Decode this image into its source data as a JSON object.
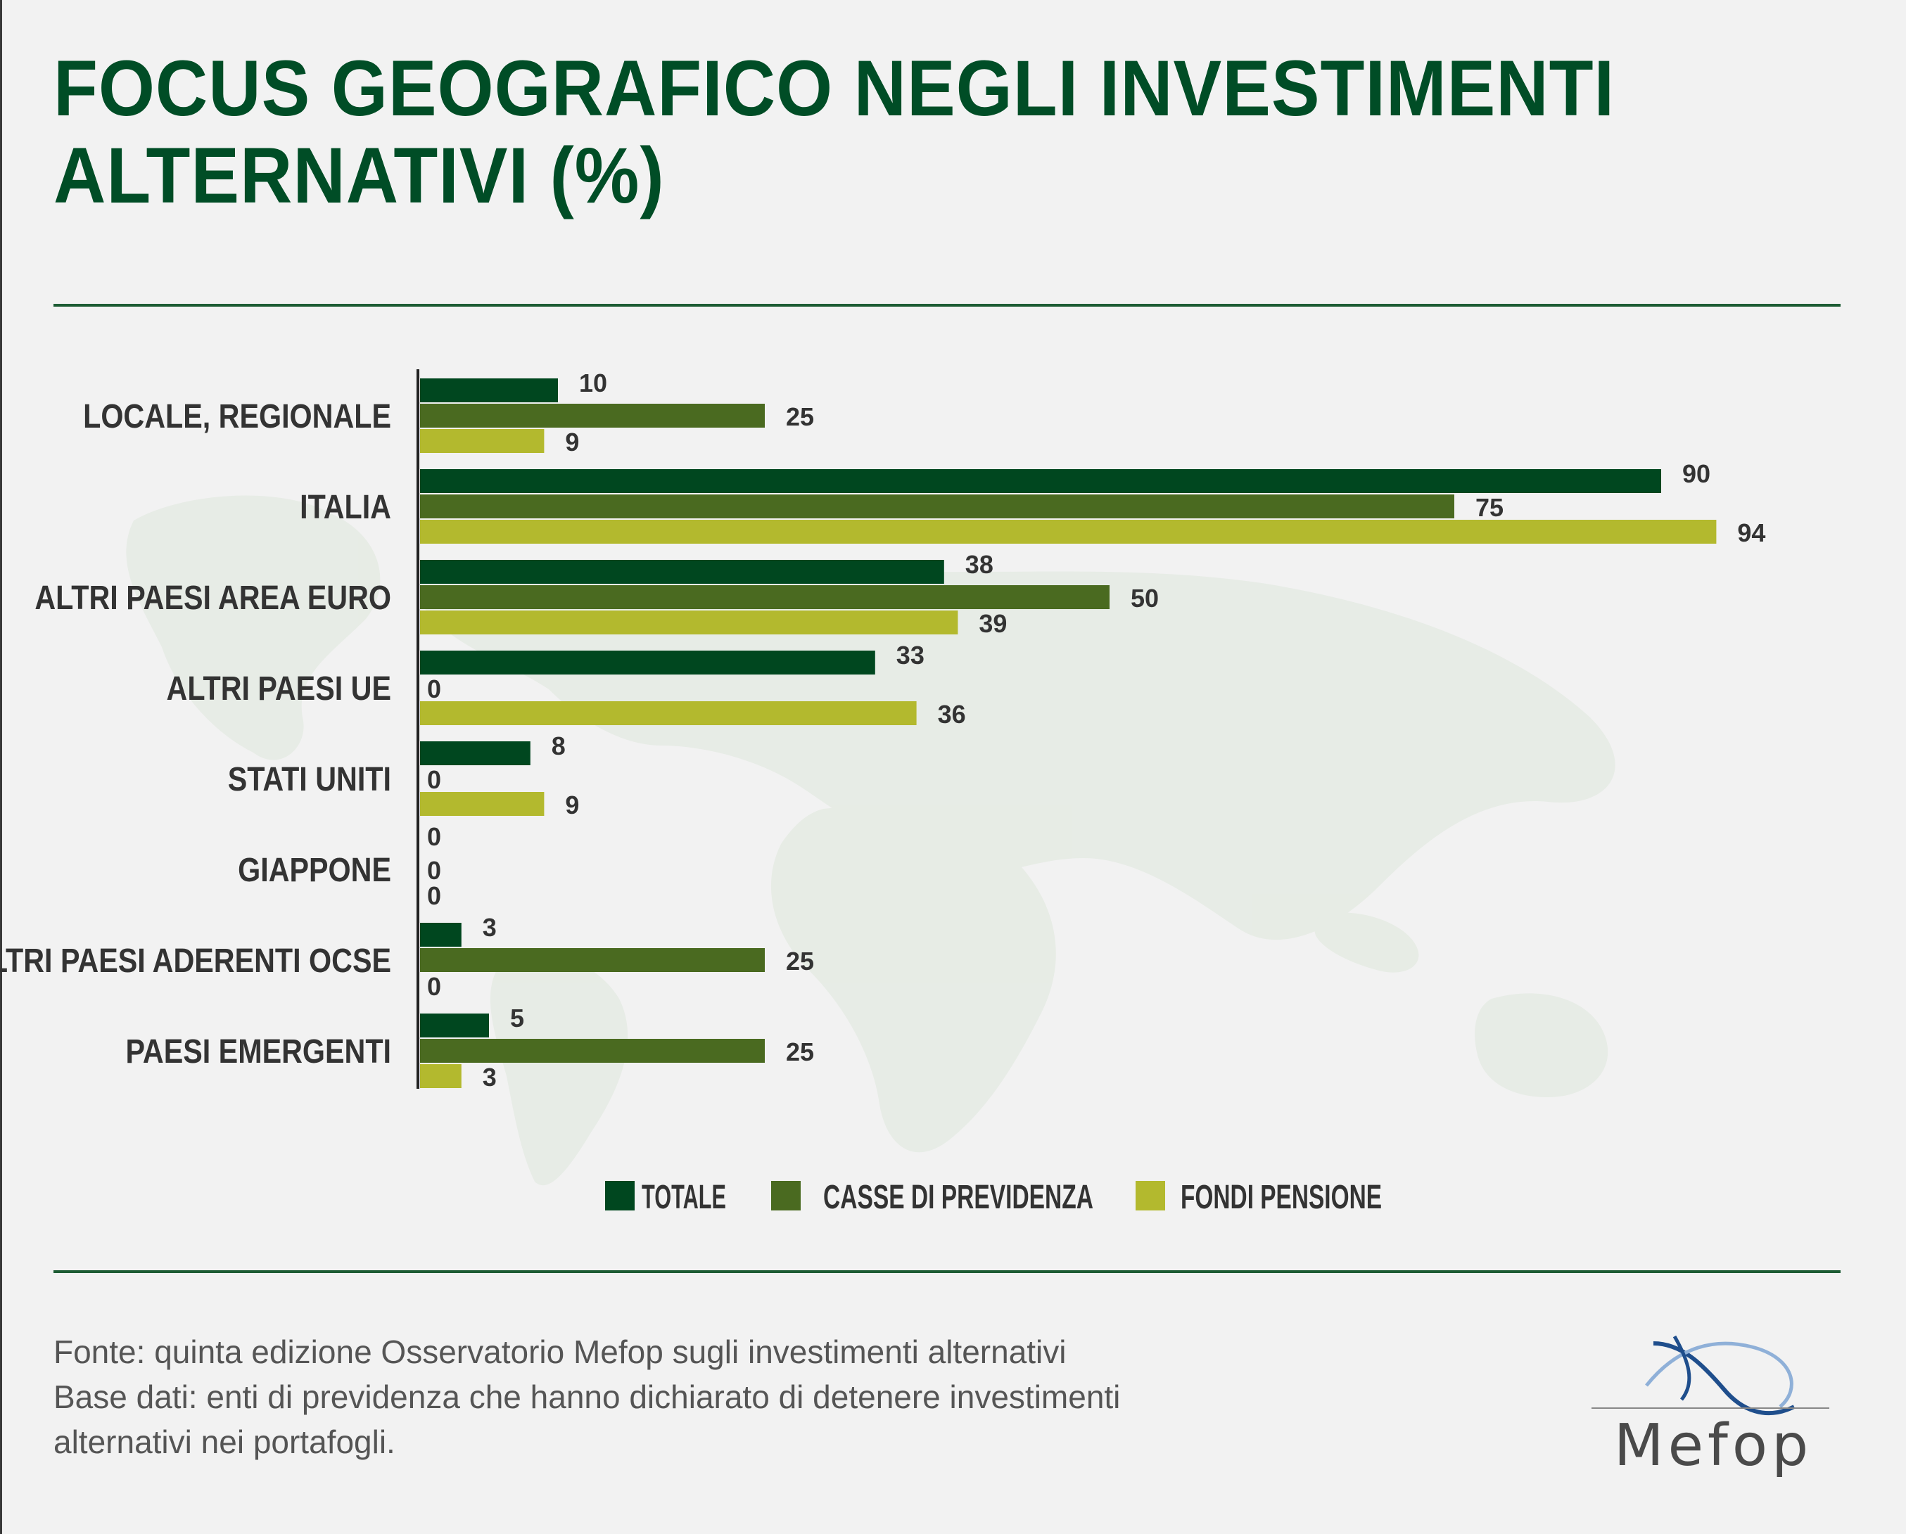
{
  "title": "FOCUS GEOGRAFICO NEGLI INVESTIMENTI ALTERNATIVI (%)",
  "footer": {
    "line1": "Fonte: quinta edizione Osservatorio Mefop sugli investimenti alternativi",
    "line2": "Base dati: enti di previdenza che hanno dichiarato di detenere investimenti",
    "line3": "alternativi nei portafogli."
  },
  "logo": {
    "text": "Mefop"
  },
  "colors": {
    "totale": "#00471f",
    "casse": "#4a6a20",
    "fondi": "#b3b92e",
    "text": "#333333",
    "title": "#004d26"
  },
  "chart_data": {
    "type": "bar",
    "orientation": "horizontal",
    "title": "FOCUS GEOGRAFICO NEGLI INVESTIMENTI ALTERNATIVI (%)",
    "categories": [
      "LOCALE, REGIONALE",
      "ITALIA",
      "ALTRI PAESI AREA EURO",
      "ALTRI PAESI UE",
      "STATI UNITI",
      "GIAPPONE",
      "ALTRI PAESI ADERENTI OCSE",
      "PAESI EMERGENTI"
    ],
    "series": [
      {
        "name": "TOTALE",
        "color": "#00471f",
        "values": [
          10,
          90,
          38,
          33,
          8,
          0,
          3,
          5
        ]
      },
      {
        "name": "CASSE DI PREVIDENZA",
        "color": "#4a6a20",
        "values": [
          25,
          75,
          50,
          0,
          0,
          0,
          25,
          25
        ]
      },
      {
        "name": "FONDI PENSIONE",
        "color": "#b3b92e",
        "values": [
          9,
          94,
          39,
          36,
          9,
          0,
          0,
          3
        ]
      }
    ],
    "xlim": [
      0,
      94
    ],
    "grid": false,
    "legend": "bottom",
    "data_labels": true
  }
}
